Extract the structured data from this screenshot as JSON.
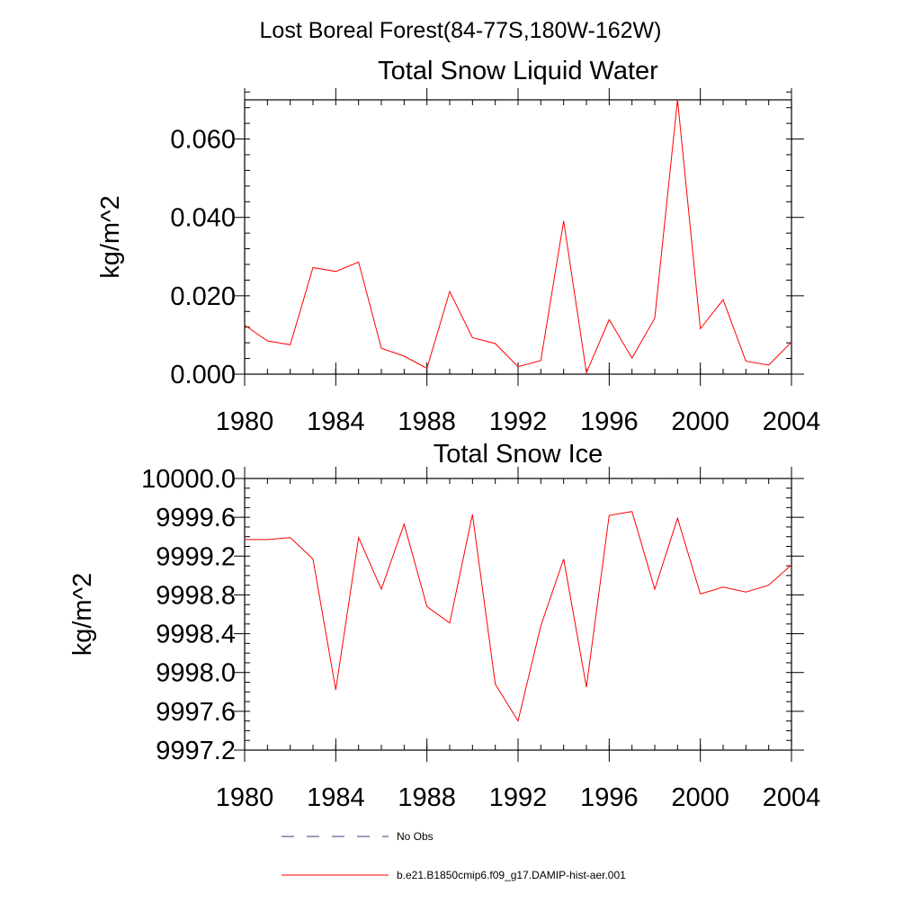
{
  "figure_title": "Lost Boreal Forest(84-77S,180W-162W)",
  "legend": [
    {
      "label": "No Obs",
      "color": "#3b3b7a",
      "style": "dashed"
    },
    {
      "label": "b.e21.B1850cmip6.f09_g17.DAMIP-hist-aer.001",
      "color": "#ff0000",
      "style": "solid"
    }
  ],
  "chart_data": [
    {
      "type": "line",
      "title": "Total Snow Liquid Water",
      "xlabel": "",
      "ylabel": "kg/m^2",
      "xlim": [
        1980,
        2004
      ],
      "ylim": [
        0,
        0.07
      ],
      "x_ticks": [
        1980,
        1984,
        1988,
        1992,
        1996,
        2000,
        2004
      ],
      "x_tick_labels": [
        "1980",
        "1984",
        "1988",
        "1992",
        "1996",
        "2000",
        "2004"
      ],
      "y_ticks": [
        0,
        0.02,
        0.04,
        0.06
      ],
      "y_tick_labels": [
        "0.000",
        "0.020",
        "0.040",
        "0.060"
      ],
      "y_minor_step": 0.004,
      "x_minor_step": 1,
      "grid": false,
      "series": [
        {
          "color": "#ff0000",
          "x": [
            1980,
            1981,
            1982,
            1983,
            1984,
            1985,
            1986,
            1987,
            1988,
            1989,
            1990,
            1991,
            1992,
            1993,
            1994,
            1995,
            1996,
            1997,
            1998,
            1999,
            2000,
            2001,
            2002,
            2003,
            2004
          ],
          "values": [
            0.0125,
            0.0085,
            0.0075,
            0.0272,
            0.0262,
            0.0286,
            0.0066,
            0.0046,
            0.0015,
            0.0211,
            0.0093,
            0.0078,
            0.0019,
            0.0035,
            0.0391,
            0.0004,
            0.0139,
            0.0041,
            0.0143,
            0.0701,
            0.0116,
            0.019,
            0.0033,
            0.0023,
            0.0082
          ]
        }
      ]
    },
    {
      "type": "line",
      "title": "Total Snow Ice",
      "xlabel": "",
      "ylabel": "kg/m^2",
      "xlim": [
        1980,
        2004
      ],
      "ylim": [
        9997.2,
        10000.0
      ],
      "x_ticks": [
        1980,
        1984,
        1988,
        1992,
        1996,
        2000,
        2004
      ],
      "x_tick_labels": [
        "1980",
        "1984",
        "1988",
        "1992",
        "1996",
        "2000",
        "2004"
      ],
      "y_ticks": [
        9997.2,
        9997.6,
        9998.0,
        9998.4,
        9998.8,
        9999.2,
        9999.6,
        10000.0
      ],
      "y_tick_labels": [
        "9997.2",
        "9997.6",
        "9998.0",
        "9998.4",
        "9998.8",
        "9999.2",
        "9999.6",
        "10000.0"
      ],
      "y_minor_step": 0.1,
      "x_minor_step": 1,
      "grid": false,
      "series": [
        {
          "color": "#ff0000",
          "x": [
            1980,
            1981,
            1982,
            1983,
            1984,
            1985,
            1986,
            1987,
            1988,
            1989,
            1990,
            1991,
            1992,
            1993,
            1994,
            1995,
            1996,
            1997,
            1998,
            1999,
            2000,
            2001,
            2002,
            2003,
            2004
          ],
          "values": [
            9999.37,
            9999.37,
            9999.39,
            9999.17,
            9997.82,
            9999.39,
            9998.86,
            9999.53,
            9998.68,
            9998.51,
            9999.63,
            9997.88,
            9997.5,
            9998.48,
            9999.17,
            9997.85,
            9999.62,
            9999.66,
            9998.86,
            9999.59,
            9998.81,
            9998.88,
            9998.83,
            9998.9,
            9999.11
          ]
        }
      ]
    }
  ]
}
